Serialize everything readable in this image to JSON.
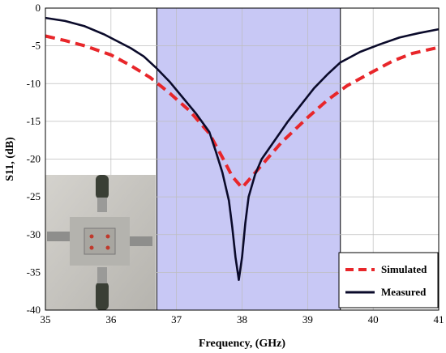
{
  "chart_data": {
    "type": "line",
    "xlabel": "Frequency, (GHz)",
    "ylabel": "S11, (dB)",
    "xlim": [
      35,
      41
    ],
    "ylim": [
      -40,
      0
    ],
    "xticks": [
      35,
      36,
      37,
      38,
      39,
      40,
      41
    ],
    "yticks": [
      0,
      -5,
      -10,
      -15,
      -20,
      -25,
      -30,
      -35,
      -40
    ],
    "xtick_labels": [
      "35",
      "36",
      "37",
      "38",
      "39",
      "40",
      "41"
    ],
    "ytick_labels": [
      "0",
      "-5",
      "-10",
      "-15",
      "-20",
      "-25",
      "-30",
      "-35",
      "-40"
    ],
    "grid": true,
    "legend_position": "bottom-right",
    "shaded_band": {
      "x_start": 36.7,
      "x_end": 39.5,
      "color": "#c8c8f5"
    },
    "inset": "photo of fabricated device with four coaxial connectors",
    "series": [
      {
        "name": "Simulated",
        "style": "dashed",
        "color": "#e8262a",
        "x": [
          35,
          35.3,
          35.6,
          36,
          36.3,
          36.6,
          36.9,
          37.2,
          37.5,
          37.7,
          37.85,
          38.0,
          38.1,
          38.3,
          38.6,
          39.0,
          39.3,
          39.6,
          40.0,
          40.3,
          40.6,
          41
        ],
        "y": [
          -3.7,
          -4.3,
          -5.0,
          -6.2,
          -7.6,
          -9.2,
          -11.3,
          -13.6,
          -16.6,
          -19.8,
          -22.3,
          -23.8,
          -22.8,
          -20.8,
          -17.8,
          -14.5,
          -12.2,
          -10.3,
          -8.4,
          -7.0,
          -6.0,
          -5.2
        ]
      },
      {
        "name": "Measured",
        "style": "solid",
        "color": "#0a0a2a",
        "x": [
          35,
          35.3,
          35.6,
          35.9,
          36.1,
          36.3,
          36.5,
          36.7,
          36.9,
          37.1,
          37.3,
          37.5,
          37.6,
          37.7,
          37.8,
          37.85,
          37.9,
          37.95,
          38.0,
          38.05,
          38.1,
          38.2,
          38.3,
          38.5,
          38.7,
          38.9,
          39.1,
          39.3,
          39.5,
          39.8,
          40.1,
          40.4,
          40.7,
          41
        ],
        "y": [
          -1.3,
          -1.7,
          -2.4,
          -3.5,
          -4.4,
          -5.3,
          -6.4,
          -8.0,
          -9.8,
          -11.9,
          -14.0,
          -16.4,
          -19.0,
          -21.8,
          -25.5,
          -29.0,
          -33.0,
          -36.0,
          -33.0,
          -28.5,
          -25.0,
          -22.0,
          -20.0,
          -17.5,
          -15.0,
          -12.8,
          -10.6,
          -8.8,
          -7.2,
          -5.8,
          -4.8,
          -3.9,
          -3.3,
          -2.8
        ]
      }
    ]
  }
}
